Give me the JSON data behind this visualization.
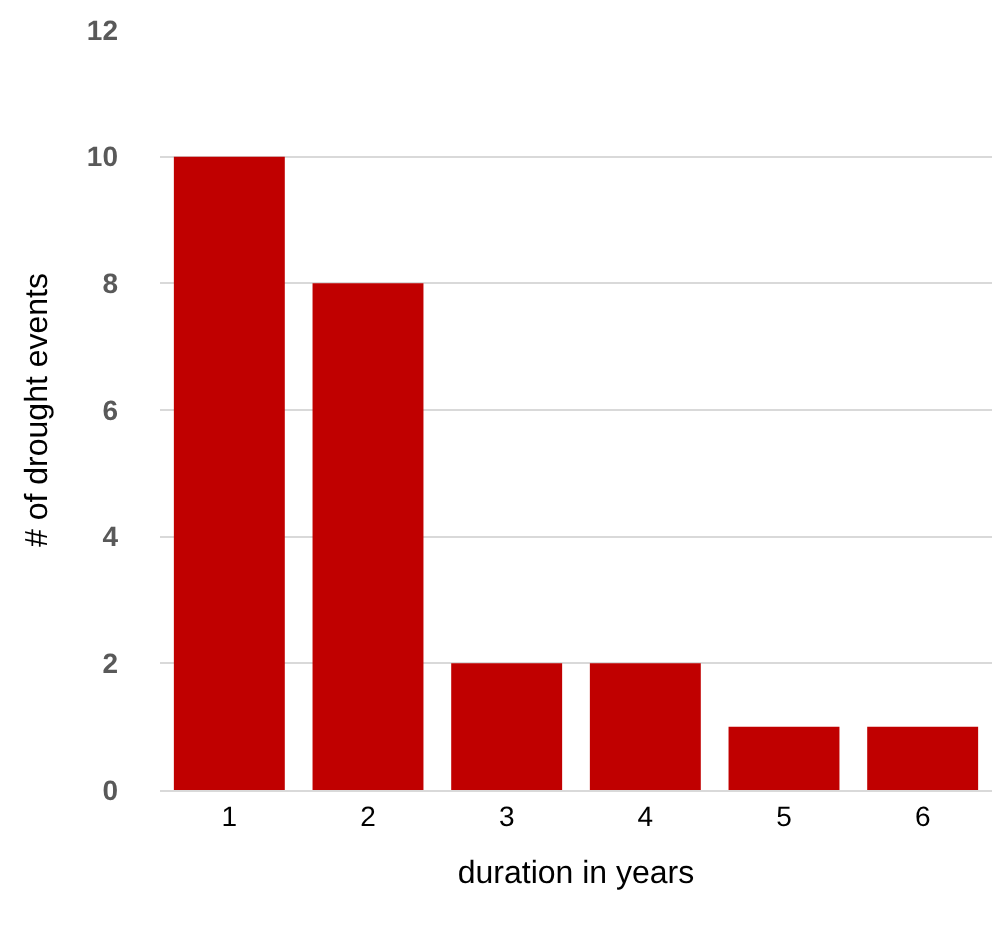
{
  "chart_data": {
    "type": "bar",
    "xlabel": "duration in years",
    "ylabel": "# of drought events",
    "categories": [
      "1",
      "2",
      "3",
      "4",
      "5",
      "6"
    ],
    "values": [
      10,
      8,
      2,
      2,
      1,
      1
    ],
    "color": "#c00000",
    "ylim": [
      0,
      12
    ],
    "yticks": [
      0,
      2,
      4,
      6,
      8,
      10,
      12
    ],
    "grid": "y",
    "legend": false
  }
}
